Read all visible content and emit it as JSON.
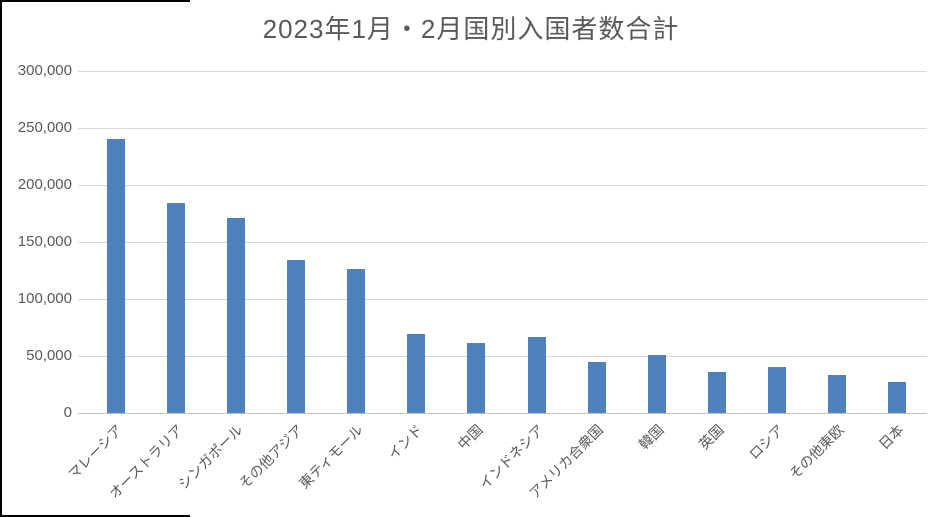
{
  "chart_data": {
    "type": "bar",
    "title": "2023年1月・2月国別入国者数合計",
    "categories": [
      "マレーシア",
      "オーストラリア",
      "シンガポール",
      "その他アジア",
      "東ティモール",
      "インド",
      "中国",
      "インドネシア",
      "アメリカ合衆国",
      "韓国",
      "英国",
      "ロシア",
      "その他東欧",
      "日本"
    ],
    "values": [
      240000,
      184000,
      171000,
      134000,
      126000,
      69000,
      61000,
      67000,
      45000,
      51000,
      36000,
      40000,
      33000,
      27000
    ],
    "xlabel": "",
    "ylabel": "",
    "ylim": [
      0,
      300000
    ],
    "ytick_interval": 50000,
    "ytick_labels": [
      "0",
      "50,000",
      "100,000",
      "150,000",
      "200,000",
      "250,000",
      "300,000"
    ],
    "grid": "horizontal",
    "legend": "none",
    "bar_color": "#4F81BD",
    "x_label_rotation_deg": 45
  },
  "colors": {
    "background": "#FFFFFF",
    "bar": "#4F81BD",
    "gridline": "#D9D9D9",
    "axis_line": "#BFBFBF",
    "text": "#595959",
    "screenshot_edge": "#000000"
  }
}
